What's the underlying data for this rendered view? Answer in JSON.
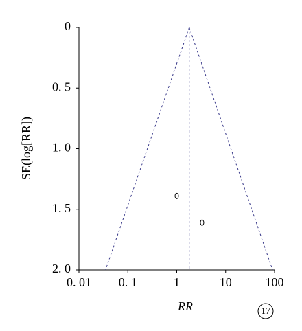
{
  "chart_data": {
    "type": "scatter",
    "x_label": "RR",
    "y_label": "SE(log[RR])",
    "annotation": "17",
    "x_log": true,
    "y_inverted": true,
    "x": [
      1.0,
      3.3
    ],
    "values": [
      1.39,
      1.61
    ],
    "reference_line": 1.8,
    "funnel_base": [
      0.035,
      91
    ],
    "xlim": [
      0.01,
      100
    ],
    "ylim": [
      0,
      2
    ],
    "xticks": [
      {
        "value": 0.01,
        "label": "0. 01"
      },
      {
        "value": 0.1,
        "label": "0. 1"
      },
      1,
      10,
      100
    ],
    "yticks": [
      0,
      {
        "value": 0.5,
        "label": "0. 5"
      },
      {
        "value": 1.0,
        "label": "1. 0"
      },
      {
        "value": 1.5,
        "label": "1. 5"
      },
      {
        "value": 2.0,
        "label": "2. 0"
      }
    ]
  }
}
